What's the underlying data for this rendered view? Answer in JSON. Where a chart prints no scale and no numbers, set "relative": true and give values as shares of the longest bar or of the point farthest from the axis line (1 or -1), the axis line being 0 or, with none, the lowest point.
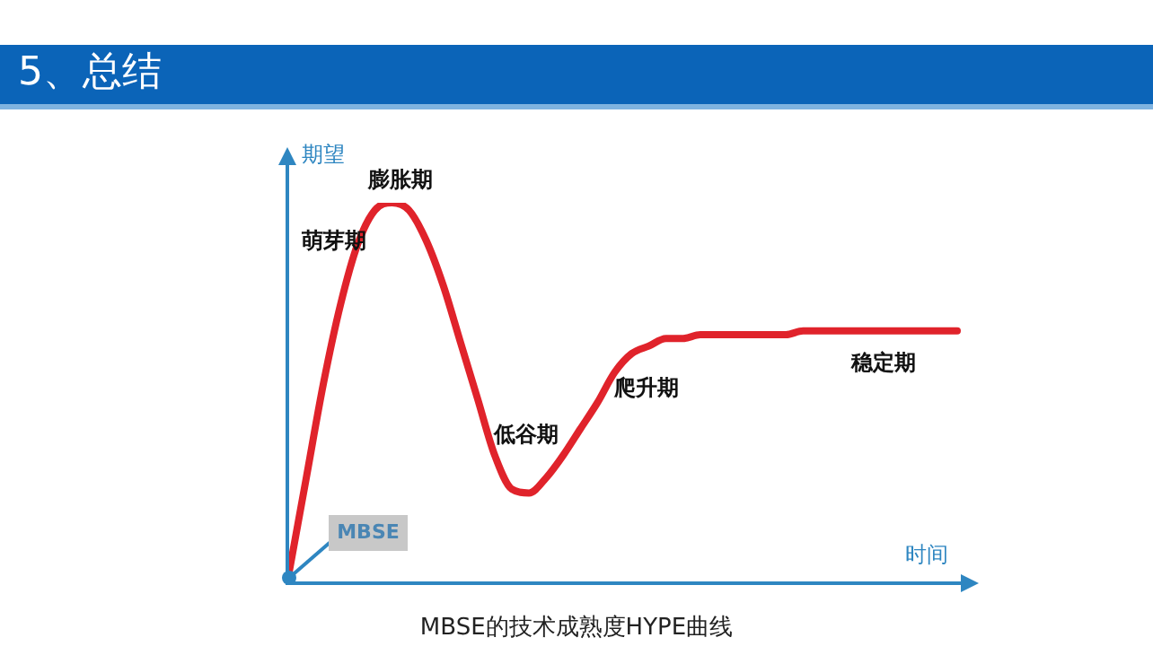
{
  "chart_data": {
    "type": "line",
    "title": "5、总结",
    "xlabel": "时间",
    "ylabel": "期望",
    "relative": true,
    "color": "#e0232b",
    "marker": "none",
    "line_style": "solid",
    "legend": false,
    "categories": [
      null,
      null,
      null,
      null,
      null,
      null,
      null,
      null,
      null,
      null,
      null,
      null,
      null,
      null,
      null,
      null,
      null,
      null,
      null,
      null,
      null,
      null,
      null,
      null,
      null,
      null,
      null,
      null,
      null,
      null,
      null,
      null,
      null,
      null,
      null,
      null,
      null,
      null,
      null,
      null
    ],
    "values": [
      0.02,
      0.27,
      0.52,
      0.73,
      0.89,
      0.98,
      1,
      0.98,
      0.9,
      0.78,
      0.63,
      0.48,
      0.33,
      0.24,
      0.23,
      0.27,
      0.33,
      0.4,
      0.47,
      0.55,
      0.6,
      0.62,
      0.64,
      0.64,
      0.65,
      0.65,
      0.65,
      0.65,
      0.65,
      0.65,
      0.66,
      0.66,
      0.66,
      0.66,
      0.66,
      0.66,
      0.66,
      0.66,
      0.66,
      0.66
    ],
    "annotations": [
      "萌芽期",
      "膨胀期",
      "低谷期",
      "爬升期",
      "稳定期",
      "MBSE",
      "MBSE的技术成熟度HYPE曲线"
    ]
  }
}
